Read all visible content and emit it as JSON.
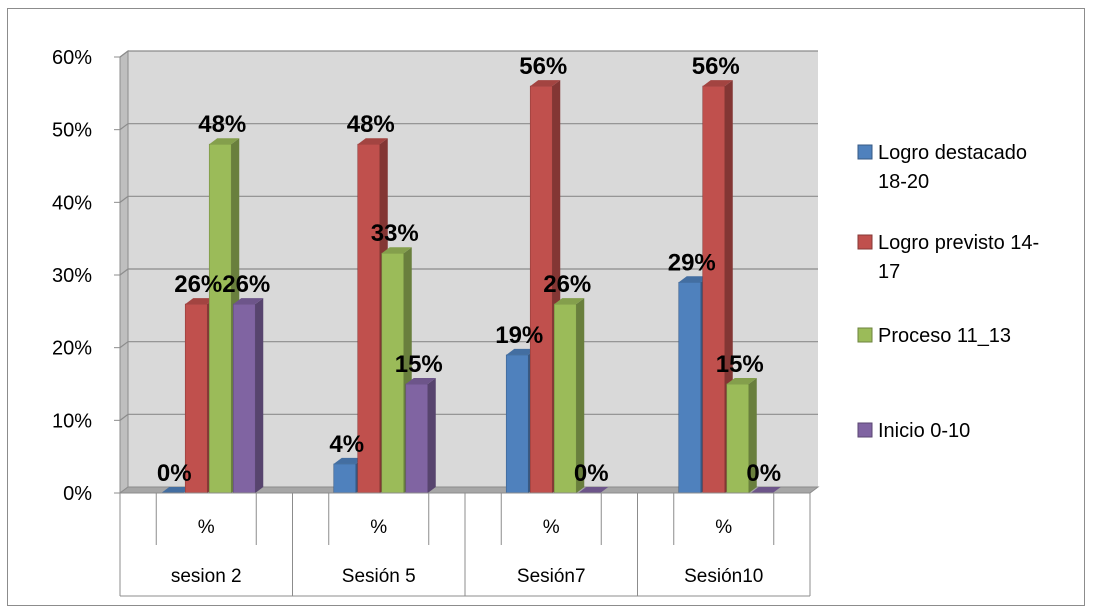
{
  "chart_data": {
    "type": "bar",
    "variant": "3d-clustered-column",
    "y_axis": {
      "min": 0,
      "max": 0.6,
      "step": 0.1,
      "format": "percent"
    },
    "grid": true,
    "legend_position": "right",
    "categories": [
      {
        "group": "sesion 2",
        "sub": "%"
      },
      {
        "group": "Sesión 5",
        "sub": "%"
      },
      {
        "group": "Sesión7",
        "sub": "%"
      },
      {
        "group": "Sesión10",
        "sub": "%"
      }
    ],
    "y_ticks": [
      "0%",
      "10%",
      "20%",
      "30%",
      "40%",
      "50%",
      "60%"
    ],
    "series": [
      {
        "name": "Logro destacado 18-20",
        "legend_lines": [
          "Logro destacado",
          "18-20"
        ],
        "color": "#4F81BD",
        "values": [
          0.0,
          0.04,
          0.19,
          0.29
        ],
        "labels": [
          "0%",
          "4%",
          "19%",
          "29%"
        ]
      },
      {
        "name": "Logro previsto 14-17",
        "legend_lines": [
          "Logro previsto 14-",
          "17"
        ],
        "color": "#C0504D",
        "values": [
          0.26,
          0.48,
          0.56,
          0.56
        ],
        "labels": [
          "26%",
          "48%",
          "56%",
          "56%"
        ]
      },
      {
        "name": "Proceso 11_13",
        "legend_lines": [
          "Proceso 11_13"
        ],
        "color": "#9BBB59",
        "values": [
          0.48,
          0.33,
          0.26,
          0.15
        ],
        "labels": [
          "48%",
          "33%",
          "26%",
          "15%"
        ]
      },
      {
        "name": "Inicio 0-10",
        "legend_lines": [
          "Inicio 0-10"
        ],
        "color": "#8064A2",
        "values": [
          0.26,
          0.15,
          0.0,
          0.0
        ],
        "labels": [
          "26%",
          "15%",
          "0%",
          "0%"
        ]
      }
    ]
  }
}
